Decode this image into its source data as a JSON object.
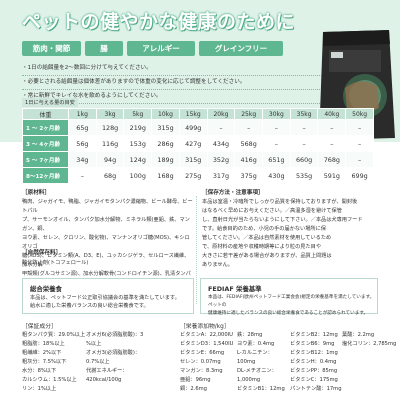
{
  "hero": {
    "title": "ペットの健やかな健康のために",
    "tags": [
      "筋肉・関節",
      "腸",
      "アレルギー",
      "グレインフリー"
    ],
    "notes": [
      "・1日の給餌量を2〜数回に分けて与えてください。",
      "・必要とされる給餌量は個体差がありますので体重の変化に応じて調整をしてください。",
      "・常に新鮮でキレイな水を飲めるようにしてください。"
    ]
  },
  "table": {
    "label": "1日に与える量の目安",
    "headers": [
      "体重",
      "1kg",
      "3kg",
      "5kg",
      "10kg",
      "15kg",
      "20kg",
      "25kg",
      "30kg",
      "35kg",
      "40kg",
      "50kg"
    ],
    "rows": [
      [
        "1 〜 2ヶ月齢",
        "65g",
        "128g",
        "219g",
        "315g",
        "499g",
        "–",
        "–",
        "–",
        "–",
        "–",
        "–"
      ],
      [
        "3 〜 4ヶ月齢",
        "56g",
        "116g",
        "153g",
        "286g",
        "427g",
        "434g",
        "568g",
        "–",
        "–",
        "–",
        "–"
      ],
      [
        "5 〜 7ヶ月齢",
        "34g",
        "94g",
        "124g",
        "189g",
        "315g",
        "352g",
        "416g",
        "651g",
        "660g",
        "768g",
        "–"
      ],
      [
        "8〜12ヶ月齢",
        "–",
        "68g",
        "100g",
        "168g",
        "275g",
        "317g",
        "375g",
        "430g",
        "535g",
        "591g",
        "699g"
      ]
    ]
  },
  "ingredients": {
    "heading": "［原材料］",
    "text": [
      "鴨肉、ジャガイモ、鴨脂、ジャガイモタンパク濃縮物、ビール酵母、ビートパル",
      "プ、サーモンオイル、タンパク加水分解物、ミネラル類(亜鉛、鉄、マンガン、銅、",
      "ヨウ素、セレン、クロリン、酸化物)、マンナンオリゴ糖(MOS)、キシロオリゴ",
      "糖(XOS)、ビタミン類(A、D3、E)、ユッカシジゲラ、セルロース繊維、加水分解",
      "甲殻類(グルコサミン源)、加水分解軟骨(コンドロイチン源)、乳清タンパク"
    ],
    "additive_heading": "［自然保存料］",
    "additive": "酸化防止剤(トコフェロール)"
  },
  "storage": {
    "heading": "［保存方法・注意事項］",
    "text": [
      "本品は室温・冷暗所でしっかり品質を保持しておりますが、開封後",
      "はなるべく早めにお与えください。／高温多湿を避けて保管",
      "し、直射日光が当たらないようにして下さい。／本品は犬専用フード",
      "です。給食目的のため、小児の手の届かない場所に保",
      "管してください。／本品は自然素材を使用しているため",
      "で、原材料の産地や収穫時期等により粒の見た目や",
      "大きさに若干差がある場合がありますが、品質上問題は",
      "ありません。"
    ]
  },
  "standards": {
    "left_title": "総合栄養食",
    "left_text": [
      "本品は、ペットフード公正取引協議会の基準を満たしています。",
      "給水に適した栄養バランスの良い総合栄養食です。"
    ],
    "right_title": "FEDIAF 栄養基準",
    "right_text": [
      "本品は、FEDIAF(欧州ペットフード工業会会)規定の栄養基準を満たしています。ペットの",
      "健康維持に適したバランスの良い総合栄養食であることが認められています。"
    ]
  },
  "analysis": {
    "heading": "［保証成分］",
    "col1": [
      "粗タンパク質：29.0%以上",
      "粗脂肪：18%以上",
      "粗繊維：2%以下",
      "粗灰分：7.5%以下",
      "水分：8%以下",
      "カルシウム：1.5%以上",
      "リン：1%以上"
    ],
    "col2": [
      "オメガ6(必須脂肪酸)：3",
      "%以上",
      "オメガ3(必須脂肪酸)：",
      "0.7%以上",
      "代謝エネルギー：",
      "420kcal/100g"
    ]
  },
  "nutrients": {
    "heading": "［栄養添加物/kg］",
    "col1": [
      "ビタミンA：22,000IU",
      "ビタミンD3：1,540IU",
      "ビタミンE：66mg",
      "セレン：0.07mg",
      "マンガン：8.3mg",
      "亜鉛：96mg",
      "銅：2.6mg"
    ],
    "col2": [
      "鉄：28mg",
      "ヨウ素：0.4mg",
      "L-カルニチン：",
      "100mg",
      "DL-メチオニン：",
      "1,000mg",
      "ビタミンB1：12mg"
    ],
    "col3": [
      "ビタミンB2：12mg",
      "ビタミンB6：9mg",
      "ビタミンB12：1mg",
      "ビタミンH：0.4mg",
      "ビタミンPP：85mg",
      "ビタミンC：175mg",
      "パントテン酸：17mg"
    ],
    "col4": [
      "葉酸：2.2mg",
      "塩化コリン：2,785mg"
    ]
  }
}
